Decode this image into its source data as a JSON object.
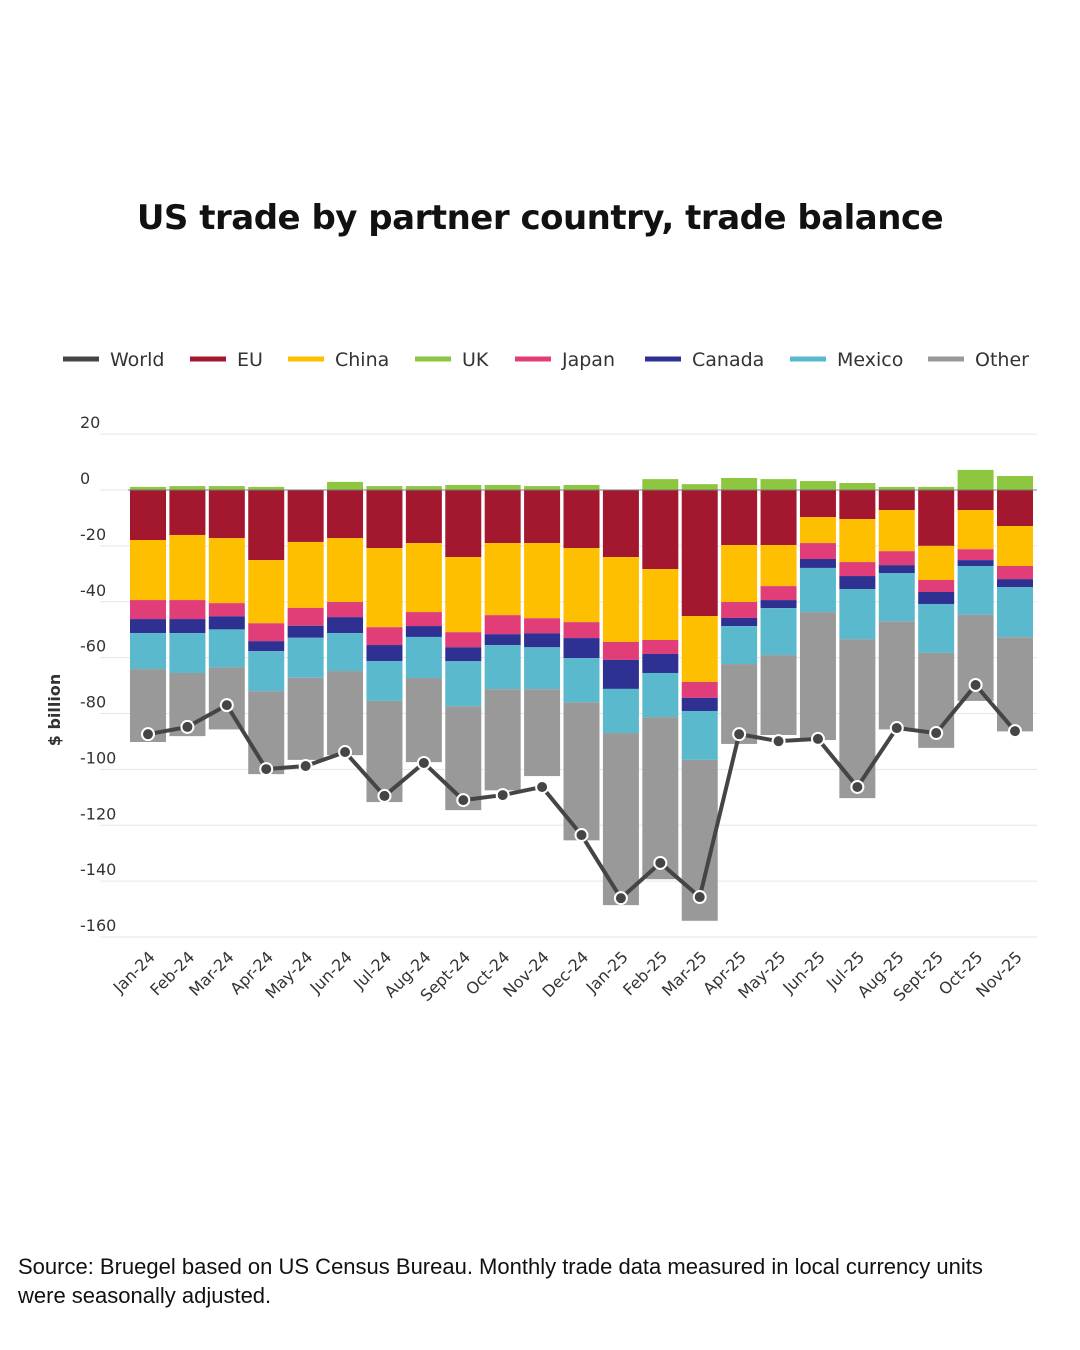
{
  "title": "US trade by partner country, trade balance",
  "source": "Source: Bruegel based on US Census Bureau. Monthly trade data measured in local currency units were seasonally adjusted.",
  "chart_data": {
    "type": "bar",
    "stacked": true,
    "title": "US trade by partner country, trade balance",
    "xlabel": "",
    "ylabel": "$ billion",
    "ylim": [
      -160,
      20
    ],
    "yticks": [
      20,
      0,
      -20,
      -40,
      -60,
      -80,
      -100,
      -120,
      -140,
      -160
    ],
    "grid": true,
    "legend_position": "top",
    "categories": [
      "Jan-24",
      "Feb-24",
      "Mar-24",
      "Apr-24",
      "May-24",
      "Jun-24",
      "Jul-24",
      "Aug-24",
      "Sept-24",
      "Oct-24",
      "Nov-24",
      "Dec-24",
      "Jan-25",
      "Feb-25",
      "Mar-25",
      "Apr-25",
      "May-25",
      "Jun-25",
      "Jul-25",
      "Aug-25",
      "Sept-25",
      "Oct-25",
      "Nov-25"
    ],
    "legend": [
      "World",
      "EU",
      "China",
      "UK",
      "Japan",
      "Canada",
      "Mexico",
      "Other"
    ],
    "colors": {
      "World": "#454545",
      "EU": "#a3172f",
      "China": "#fdbf00",
      "UK": "#8dc63f",
      "Japan": "#e03d79",
      "Canada": "#2e3192",
      "Mexico": "#5ab9cd",
      "Other": "#999999"
    },
    "series": [
      {
        "name": "EU",
        "values": [
          -17.9,
          -16.1,
          -17.2,
          -25.1,
          -18.6,
          -17.2,
          -20.8,
          -19.0,
          -24.0,
          -19.0,
          -19.0,
          -20.8,
          -24.0,
          -28.3,
          -45.1,
          -19.7,
          -19.7,
          -9.7,
          -10.4,
          -7.2,
          -20.0,
          -7.2,
          -12.9
        ]
      },
      {
        "name": "China",
        "values": [
          -21.5,
          -23.3,
          -23.3,
          -22.6,
          -23.6,
          -22.9,
          -28.3,
          -24.7,
          -26.9,
          -25.8,
          -26.9,
          -26.5,
          -30.4,
          -25.4,
          -23.6,
          -20.4,
          -14.7,
          -9.3,
          -15.4,
          -14.7,
          -12.2,
          -14.0,
          -14.3
        ]
      },
      {
        "name": "Japan",
        "values": [
          -6.8,
          -6.8,
          -4.7,
          -6.4,
          -6.4,
          -5.4,
          -6.4,
          -5.0,
          -5.4,
          -6.8,
          -5.4,
          -5.7,
          -6.4,
          -5.0,
          -5.7,
          -5.7,
          -5.0,
          -5.7,
          -5.0,
          -5.0,
          -4.3,
          -3.9,
          -4.7
        ]
      },
      {
        "name": "Canada",
        "values": [
          -5.0,
          -5.0,
          -4.7,
          -3.6,
          -4.3,
          -5.7,
          -5.7,
          -3.9,
          -5.0,
          -3.9,
          -5.0,
          -7.2,
          -10.4,
          -6.8,
          -4.7,
          -2.9,
          -2.9,
          -3.2,
          -4.7,
          -2.9,
          -4.3,
          -2.1,
          -2.9
        ]
      },
      {
        "name": "Mexico",
        "values": [
          -12.9,
          -14.3,
          -13.6,
          -14.3,
          -14.3,
          -13.6,
          -14.3,
          -14.7,
          -16.1,
          -15.8,
          -15.0,
          -15.8,
          -15.8,
          -15.8,
          -17.5,
          -13.6,
          -16.8,
          -15.8,
          -17.9,
          -17.2,
          -17.5,
          -17.5,
          -17.9
        ]
      },
      {
        "name": "Other",
        "values": [
          -26.1,
          -22.6,
          -22.2,
          -29.7,
          -29.4,
          -30.1,
          -36.2,
          -30.1,
          -37.2,
          -36.2,
          -31.1,
          -49.4,
          -61.6,
          -58.0,
          -57.6,
          -28.6,
          -28.6,
          -45.8,
          -56.9,
          -38.7,
          -34.0,
          -30.8,
          -33.7
        ]
      },
      {
        "name": "UK",
        "values": [
          1.1,
          1.4,
          1.4,
          1.1,
          0.0,
          2.9,
          1.4,
          1.4,
          1.8,
          1.8,
          1.4,
          1.8,
          0.0,
          3.9,
          2.1,
          4.3,
          3.9,
          3.2,
          2.5,
          1.1,
          1.1,
          7.2,
          5.0
        ]
      },
      {
        "name": "World",
        "type": "line",
        "values": [
          -87.4,
          -84.8,
          -77.0,
          -99.9,
          -98.8,
          -93.8,
          -109.5,
          -97.7,
          -111.0,
          -109.2,
          -106.3,
          -123.5,
          -146.1,
          -133.5,
          -145.7,
          -87.4,
          -89.9,
          -89.1,
          -106.3,
          -85.2,
          -87.0,
          -69.8,
          -86.3
        ]
      }
    ]
  }
}
